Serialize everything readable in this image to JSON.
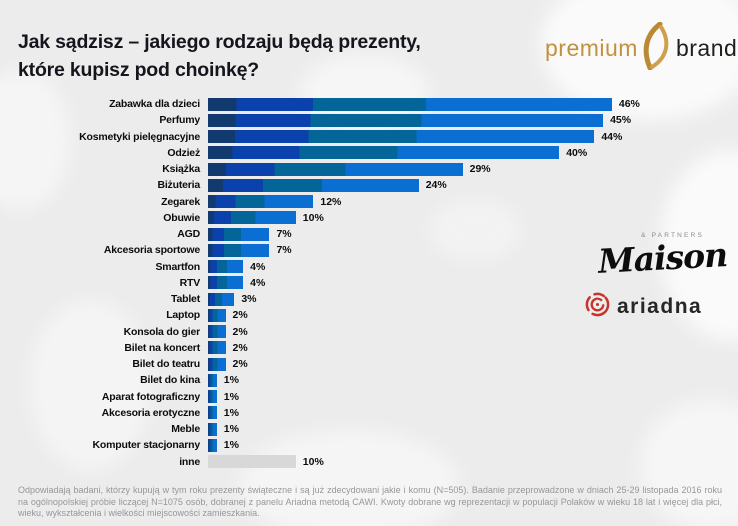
{
  "title": {
    "line1": "Jak sądzisz – jakiego rodzaju będą prezenty,",
    "line2": "które kupisz pod choinkę?"
  },
  "logos": {
    "premium_brand": {
      "word1": "premium",
      "word2": "brand",
      "gold_color": "#c2913d",
      "dark_color": "#211d19"
    },
    "maison": {
      "name": "Maison",
      "partners": "& PARTNERS"
    },
    "ariadna": {
      "name": "ariadna",
      "icon_color": "#c5342d"
    }
  },
  "chart_data": {
    "type": "bar",
    "orientation": "horizontal",
    "title": "Jak sądzisz – jakiego rodzaju będą prezenty, które kupisz pod choinkę?",
    "categories": [
      "Zabawka dla dzieci",
      "Perfumy",
      "Kosmetyki pielęgnacyjne",
      "Odzież",
      "Książka",
      "Biżuteria",
      "Zegarek",
      "Obuwie",
      "AGD",
      "Akcesoria sportowe",
      "Smartfon",
      "RTV",
      "Tablet",
      "Laptop",
      "Konsola do gier",
      "Bilet na koncert",
      "Bilet do teatru",
      "Bilet do kina",
      "Aparat fotograficzny",
      "Akcesoria erotyczne",
      "Meble",
      "Komputer stacjonarny",
      "inne"
    ],
    "values": [
      46,
      45,
      44,
      40,
      29,
      24,
      12,
      10,
      7,
      7,
      4,
      4,
      3,
      2,
      2,
      2,
      2,
      1,
      1,
      1,
      1,
      1,
      10
    ],
    "value_labels": [
      "46%",
      "45%",
      "44%",
      "40%",
      "29%",
      "24%",
      "12%",
      "10%",
      "7%",
      "7%",
      "4%",
      "4%",
      "3%",
      "2%",
      "2%",
      "2%",
      "2%",
      "1%",
      "1%",
      "1%",
      "1%",
      "1%",
      "10%"
    ],
    "unit": "%",
    "xlim": [
      0,
      50
    ],
    "grid": false,
    "legend": false,
    "bar_segment_colors": [
      "#123a6e",
      "#0a41ac",
      "#036598",
      "#0a6ed3"
    ],
    "bar_segment_stops": [
      7,
      26,
      54
    ],
    "other_category": "inne",
    "other_bar_color": "#d8d8d8"
  },
  "footnote": "Odpowiadają badani, którzy kupują w tym roku prezenty świąteczne i są już zdecydowani jakie i komu (N=505). Badanie przeprowadzone w dniach 25-29 listopada 2016 roku na ogólnopolskiej próbie liczącej N=1075 osób, dobranej z panelu Ariadna metodą CAWI. Kwoty dobrane wg reprezentacji w populacji Polaków w wieku 18 lat i więcej dla płci, wieku, wykształcenia i wielkości miejscowości zamieszkania."
}
